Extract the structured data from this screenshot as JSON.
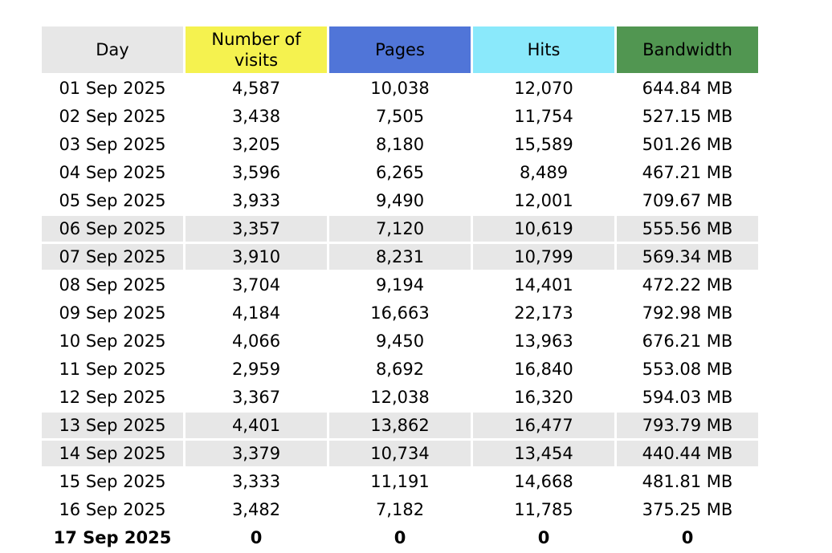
{
  "table": {
    "headers": {
      "day": "Day",
      "visits": "Number of visits",
      "pages": "Pages",
      "hits": "Hits",
      "bandwidth": "Bandwidth"
    },
    "header_colors": {
      "day": "#e7e7e7",
      "visits": "#f5f24f",
      "pages": "#5075d8",
      "hits": "#8ae9fb",
      "bandwidth": "#519651"
    },
    "weekend_row_color": "#e7e7e7",
    "rows": [
      {
        "day": "01 Sep 2025",
        "visits": "4,587",
        "pages": "10,038",
        "hits": "12,070",
        "bandwidth": "644.84 MB",
        "weekend": false
      },
      {
        "day": "02 Sep 2025",
        "visits": "3,438",
        "pages": "7,505",
        "hits": "11,754",
        "bandwidth": "527.15 MB",
        "weekend": false
      },
      {
        "day": "03 Sep 2025",
        "visits": "3,205",
        "pages": "8,180",
        "hits": "15,589",
        "bandwidth": "501.26 MB",
        "weekend": false
      },
      {
        "day": "04 Sep 2025",
        "visits": "3,596",
        "pages": "6,265",
        "hits": "8,489",
        "bandwidth": "467.21 MB",
        "weekend": false
      },
      {
        "day": "05 Sep 2025",
        "visits": "3,933",
        "pages": "9,490",
        "hits": "12,001",
        "bandwidth": "709.67 MB",
        "weekend": false
      },
      {
        "day": "06 Sep 2025",
        "visits": "3,357",
        "pages": "7,120",
        "hits": "10,619",
        "bandwidth": "555.56 MB",
        "weekend": true
      },
      {
        "day": "07 Sep 2025",
        "visits": "3,910",
        "pages": "8,231",
        "hits": "10,799",
        "bandwidth": "569.34 MB",
        "weekend": true
      },
      {
        "day": "08 Sep 2025",
        "visits": "3,704",
        "pages": "9,194",
        "hits": "14,401",
        "bandwidth": "472.22 MB",
        "weekend": false
      },
      {
        "day": "09 Sep 2025",
        "visits": "4,184",
        "pages": "16,663",
        "hits": "22,173",
        "bandwidth": "792.98 MB",
        "weekend": false
      },
      {
        "day": "10 Sep 2025",
        "visits": "4,066",
        "pages": "9,450",
        "hits": "13,963",
        "bandwidth": "676.21 MB",
        "weekend": false
      },
      {
        "day": "11 Sep 2025",
        "visits": "2,959",
        "pages": "8,692",
        "hits": "16,840",
        "bandwidth": "553.08 MB",
        "weekend": false
      },
      {
        "day": "12 Sep 2025",
        "visits": "3,367",
        "pages": "12,038",
        "hits": "16,320",
        "bandwidth": "594.03 MB",
        "weekend": false
      },
      {
        "day": "13 Sep 2025",
        "visits": "4,401",
        "pages": "13,862",
        "hits": "16,477",
        "bandwidth": "793.79 MB",
        "weekend": true
      },
      {
        "day": "14 Sep 2025",
        "visits": "3,379",
        "pages": "10,734",
        "hits": "13,454",
        "bandwidth": "440.44 MB",
        "weekend": true
      },
      {
        "day": "15 Sep 2025",
        "visits": "3,333",
        "pages": "11,191",
        "hits": "14,668",
        "bandwidth": "481.81 MB",
        "weekend": false
      },
      {
        "day": "16 Sep 2025",
        "visits": "3,482",
        "pages": "7,182",
        "hits": "11,785",
        "bandwidth": "375.25 MB",
        "weekend": false
      },
      {
        "day": "17 Sep 2025",
        "visits": "0",
        "pages": "0",
        "hits": "0",
        "bandwidth": "0",
        "weekend": false,
        "bold": true
      }
    ]
  }
}
